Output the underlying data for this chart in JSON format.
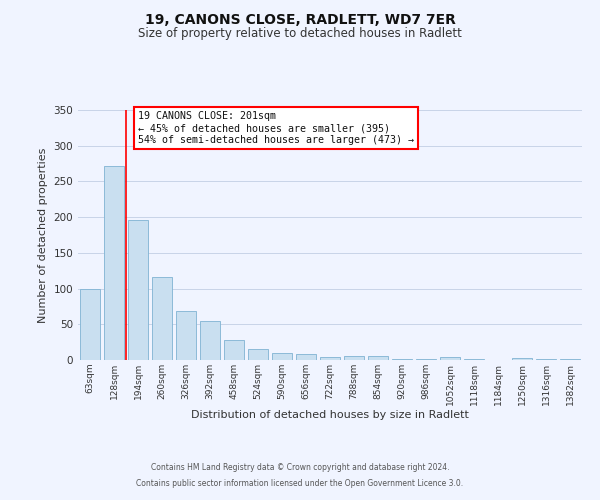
{
  "title": "19, CANONS CLOSE, RADLETT, WD7 7ER",
  "subtitle": "Size of property relative to detached houses in Radlett",
  "xlabel": "Distribution of detached houses by size in Radlett",
  "ylabel": "Number of detached properties",
  "categories": [
    "63sqm",
    "128sqm",
    "194sqm",
    "260sqm",
    "326sqm",
    "392sqm",
    "458sqm",
    "524sqm",
    "590sqm",
    "656sqm",
    "722sqm",
    "788sqm",
    "854sqm",
    "920sqm",
    "986sqm",
    "1052sqm",
    "1118sqm",
    "1184sqm",
    "1250sqm",
    "1316sqm",
    "1382sqm"
  ],
  "values": [
    100,
    272,
    196,
    116,
    68,
    54,
    28,
    16,
    10,
    8,
    4,
    6,
    5,
    1,
    1,
    4,
    1,
    0,
    3,
    2,
    2
  ],
  "bar_color": "#c9dff0",
  "bar_edge_color": "#7fb3d3",
  "ylim": [
    0,
    350
  ],
  "yticks": [
    0,
    50,
    100,
    150,
    200,
    250,
    300,
    350
  ],
  "red_line_x": 1.5,
  "annotation_title": "19 CANONS CLOSE: 201sqm",
  "annotation_line1": "← 45% of detached houses are smaller (395)",
  "annotation_line2": "54% of semi-detached houses are larger (473) →",
  "footer_line1": "Contains HM Land Registry data © Crown copyright and database right 2024.",
  "footer_line2": "Contains public sector information licensed under the Open Government Licence 3.0.",
  "background_color": "#f0f4ff",
  "grid_color": "#c8d4e8"
}
